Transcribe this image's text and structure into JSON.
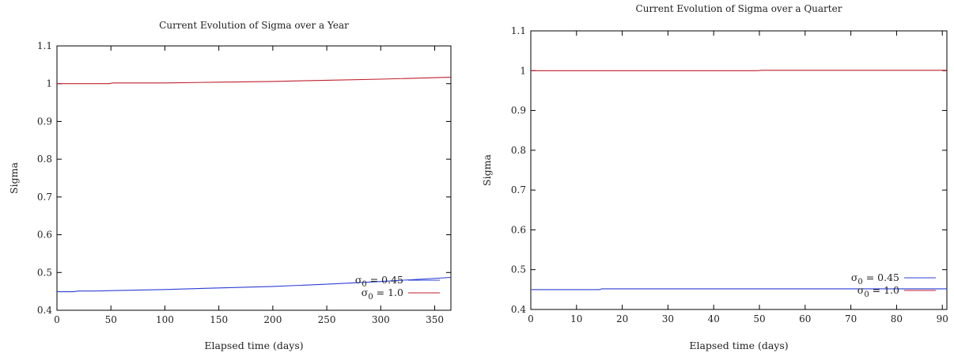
{
  "chart_data": [
    {
      "type": "line",
      "title": "Current Evolution of Sigma over a Year",
      "xlabel": "Elapsed time (days)",
      "ylabel": "Sigma",
      "xlim": [
        0,
        365
      ],
      "ylim": [
        0.4,
        1.1
      ],
      "xticks": [
        0,
        50,
        100,
        150,
        200,
        250,
        300,
        350
      ],
      "yticks": [
        0.4,
        0.5,
        0.6,
        0.7,
        0.8,
        0.9,
        1,
        1.1
      ],
      "xtick_labels": [
        "0",
        "50",
        "100",
        "150",
        "200",
        "250",
        "300",
        "350"
      ],
      "ytick_labels": [
        "0.4",
        "0.5",
        "0.6",
        "0.7",
        "0.8",
        "0.9",
        "1",
        "1.1"
      ],
      "grid": false,
      "legend_position": "bottom-right",
      "series": [
        {
          "name_base": "σ",
          "name_sub": "0",
          "name_rest": " = 0.45",
          "color": "#2b3fd4",
          "x": [
            0,
            15,
            20,
            35,
            50,
            100,
            150,
            200,
            250,
            300,
            365
          ],
          "y": [
            0.449,
            0.449,
            0.451,
            0.451,
            0.452,
            0.455,
            0.459,
            0.463,
            0.469,
            0.476,
            0.487
          ]
        },
        {
          "name_base": "σ",
          "name_sub": "0",
          "name_rest": " = 1.0",
          "color": "#c0202c",
          "x": [
            0,
            48,
            52,
            100,
            150,
            200,
            250,
            300,
            365
          ],
          "y": [
            1.0,
            1.0,
            1.002,
            1.002,
            1.004,
            1.006,
            1.009,
            1.012,
            1.017
          ]
        }
      ]
    },
    {
      "type": "line",
      "title": "Current Evolution of Sigma over a Quarter",
      "xlabel": "Elapsed time (days)",
      "ylabel": "Sigma",
      "xlim": [
        0,
        91
      ],
      "ylim": [
        0.4,
        1.1
      ],
      "xticks": [
        0,
        10,
        20,
        30,
        40,
        50,
        60,
        70,
        80,
        90
      ],
      "yticks": [
        0.4,
        0.5,
        0.6,
        0.7,
        0.8,
        0.9,
        1,
        1.1
      ],
      "xtick_labels": [
        "0",
        "10",
        "20",
        "30",
        "40",
        "50",
        "60",
        "70",
        "80",
        "90"
      ],
      "ytick_labels": [
        "0.4",
        "0.5",
        "0.6",
        "0.7",
        "0.8",
        "0.9",
        "1",
        "1.1"
      ],
      "grid": false,
      "legend_position": "bottom-right",
      "series": [
        {
          "name_base": "σ",
          "name_sub": "0",
          "name_rest": " = 0.45",
          "color": "#2b3fd4",
          "x": [
            0,
            15,
            15.5,
            91
          ],
          "y": [
            0.45,
            0.45,
            0.452,
            0.452
          ]
        },
        {
          "name_base": "σ",
          "name_sub": "0",
          "name_rest": " = 1.0",
          "color": "#c0202c",
          "x": [
            0,
            49.5,
            50.5,
            91
          ],
          "y": [
            1.0,
            1.0,
            1.001,
            1.001
          ]
        }
      ]
    }
  ]
}
